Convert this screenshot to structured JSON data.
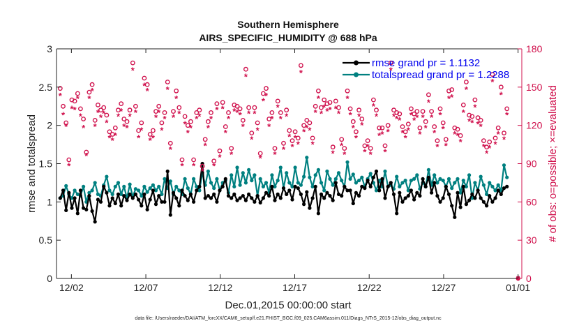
{
  "chart_data": {
    "type": "line",
    "title_line1": "Southern Hemisphere",
    "title_line2": "AIRS_SPECIFIC_HUMIDITY @ 688 hPa",
    "xlabel": "Dec.01,2015 00:00:00 start",
    "ylabel_left": "rmse and totalspread",
    "ylabel_right": "# of obs: o=possible; ×=evaluated",
    "footer": "data file: /Users/raeder/DAI/ATM_forcXX/CAM6_setup/f.e21.FHIST_BGC.f09_025.CAM6assim.011/Diags_NTrS_2015-12/obs_diag_output.nc",
    "xlim": [
      0,
      31.25
    ],
    "ylim_left": [
      0,
      3
    ],
    "ylim_right": [
      0,
      180
    ],
    "xticks": [
      1,
      6,
      11,
      16,
      21,
      26,
      31
    ],
    "xtick_labels": [
      "12/02",
      "12/07",
      "12/12",
      "12/17",
      "12/22",
      "12/27",
      "01/01"
    ],
    "yticks_left": [
      0,
      0.5,
      1,
      1.5,
      2,
      2.5,
      3
    ],
    "ytick_labels_left": [
      "0",
      "0.5",
      "1",
      "1.5",
      "2",
      "2.5",
      "3"
    ],
    "yticks_right": [
      0,
      30,
      60,
      90,
      120,
      150,
      180
    ],
    "ytick_labels_right": [
      "0",
      "30",
      "60",
      "90",
      "120",
      "150",
      "180"
    ],
    "legend": [
      "rmse grand pr = 1.1132",
      "totalspread grand pr = 1.2288"
    ],
    "legend_location": "top-right",
    "colors": {
      "rmse": "#000000",
      "totalspread": "#008080",
      "obs": "#d0104c",
      "axis": "#222222",
      "right_axis": "#d0104c"
    },
    "rmse": [
      1.05,
      1.15,
      0.89,
      1.12,
      0.92,
      1.05,
      0.85,
      1.15,
      0.92,
      0.9,
      1.08,
      0.88,
      0.74,
      1.03,
      1.0,
      1.2,
      1.12,
      0.95,
      1.05,
      0.98,
      1.1,
      0.95,
      1.08,
      1.02,
      1.1,
      1.05,
      1.1,
      1.03,
      0.95,
      1.1,
      0.9,
      1.03,
      1.15,
      0.97,
      1.08,
      1.0,
      1.0,
      1.4,
      0.83,
      1.12,
      1.05,
      0.95,
      1.15,
      1.08,
      1.02,
      1.1,
      1.0,
      1.15,
      1.2,
      1.5,
      1.05,
      1.08,
      1.05,
      1.1,
      1.0,
      1.15,
      1.2,
      1.3,
      1.08,
      1.05,
      1.1,
      1.02,
      1.05,
      1.08,
      1.02,
      1.1,
      1.05,
      1.0,
      1.08,
      0.99,
      1.05,
      1.12,
      1.08,
      1.2,
      1.02,
      1.1,
      1.05,
      1.18,
      1.1,
      1.15,
      1.03,
      1.2,
      1.18,
      1.1,
      0.97,
      1.13,
      0.92,
      1.05,
      1.2,
      0.85,
      1.1,
      1.05,
      1.12,
      1.08,
      1.02,
      1.25,
      1.1,
      1.08,
      1.2,
      1.15,
      1.15,
      0.98,
      1.12,
      1.08,
      1.2,
      1.18,
      1.28,
      1.2,
      1.32,
      1.4,
      1.15,
      1.3,
      1.05,
      1.2,
      1.25,
      1.1,
      0.85,
      1.12,
      1.0,
      1.05,
      1.08,
      1.15,
      1.03,
      1.12,
      1.08,
      1.3,
      1.2,
      1.32,
      1.12,
      1.25,
      1.08,
      1.0,
      1.05,
      1.2,
      1.1,
      0.95,
      0.8,
      1.12,
      0.93,
      1.2,
      0.97,
      1.02,
      1.1,
      1.05,
      1.15,
      1.05,
      1.0,
      0.95,
      1.08,
      1.0,
      1.05,
      1.15,
      1.1,
      1.18,
      1.2
    ],
    "totalspread": [
      1.05,
      1.08,
      1.21,
      1.1,
      1.05,
      1.15,
      1.1,
      1.08,
      1.2,
      1.0,
      1.12,
      1.15,
      1.25,
      1.1,
      1.08,
      1.22,
      1.33,
      1.15,
      1.1,
      1.2,
      1.25,
      1.1,
      1.2,
      1.05,
      1.23,
      1.07,
      1.17,
      1.15,
      1.08,
      1.2,
      1.13,
      1.18,
      1.22,
      1.15,
      1.2,
      1.1,
      1.3,
      1.18,
      1.27,
      1.1,
      1.2,
      1.15,
      1.1,
      1.3,
      1.18,
      1.1,
      1.3,
      1.2,
      1.15,
      1.38,
      1.22,
      1.4,
      1.25,
      1.18,
      1.3,
      1.15,
      1.25,
      1.28,
      1.12,
      1.35,
      1.2,
      1.45,
      1.22,
      1.38,
      1.25,
      1.42,
      1.28,
      1.35,
      1.08,
      1.3,
      1.2,
      1.25,
      1.12,
      1.35,
      1.2,
      1.28,
      1.45,
      1.18,
      1.38,
      1.25,
      1.2,
      1.45,
      1.25,
      1.22,
      1.33,
      1.58,
      1.32,
      1.2,
      1.35,
      1.42,
      1.25,
      1.15,
      1.4,
      1.3,
      1.22,
      1.3,
      1.38,
      1.28,
      1.2,
      1.52,
      1.3,
      1.36,
      1.25,
      1.28,
      1.32,
      1.2,
      1.3,
      1.37,
      1.25,
      1.15,
      1.28,
      1.2,
      1.4,
      1.2,
      1.22,
      1.17,
      1.33,
      1.2,
      1.25,
      1.28,
      1.15,
      1.28,
      1.3,
      1.35,
      1.17,
      1.25,
      1.2,
      1.42,
      1.22,
      1.35,
      1.25,
      1.3,
      1.28,
      1.2,
      1.3,
      1.18,
      1.25,
      1.3,
      1.12,
      1.28,
      1.2,
      1.35,
      1.05,
      1.25,
      1.15,
      1.33,
      1.22,
      1.1,
      1.25,
      1.2,
      1.15,
      1.22,
      1.15,
      1.48,
      1.32
    ],
    "obs_possible": [
      149,
      135,
      122,
      93,
      140,
      139,
      145,
      133,
      125,
      99,
      146,
      152,
      124,
      136,
      132,
      134,
      128,
      115,
      113,
      118,
      132,
      137,
      125,
      123,
      132,
      169,
      135,
      116,
      122,
      157,
      152,
      113,
      116,
      131,
      135,
      122,
      130,
      154,
      106,
      131,
      147,
      134,
      93,
      127,
      120,
      123,
      93,
      130,
      132,
      88,
      109,
      123,
      130,
      92,
      137,
      100,
      138,
      119,
      130,
      102,
      136,
      135,
      133,
      124,
      164,
      134,
      114,
      134,
      122,
      98,
      145,
      149,
      125,
      130,
      102,
      139,
      130,
      106,
      132,
      116,
      108,
      115,
      110,
      167,
      120,
      124,
      122,
      110,
      135,
      147,
      134,
      140,
      137,
      138,
      103,
      139,
      134,
      109,
      102,
      147,
      133,
      123,
      115,
      132,
      125,
      104,
      108,
      102,
      140,
      132,
      118,
      118,
      104,
      120,
      169,
      132,
      130,
      129,
      119,
      115,
      121,
      133,
      129,
      131,
      118,
      131,
      123,
      144,
      131,
      119,
      108,
      133,
      122,
      109,
      147,
      148,
      118,
      117,
      112,
      136,
      154,
      128,
      127,
      140,
      126,
      124,
      108,
      103,
      107,
      160,
      110,
      118,
      150,
      114,
      133
    ],
    "obs_evaluated": [
      143,
      128,
      119,
      88,
      133,
      132,
      141,
      127,
      118,
      96,
      141,
      147,
      119,
      130,
      126,
      129,
      122,
      110,
      108,
      112,
      127,
      131,
      119,
      118,
      127,
      163,
      130,
      110,
      116,
      151,
      147,
      108,
      110,
      126,
      130,
      116,
      125,
      148,
      101,
      126,
      141,
      129,
      88,
      121,
      114,
      118,
      88,
      125,
      127,
      84,
      104,
      118,
      125,
      88,
      132,
      95,
      133,
      114,
      125,
      97,
      131,
      130,
      128,
      119,
      158,
      129,
      109,
      129,
      116,
      94,
      139,
      143,
      119,
      125,
      97,
      134,
      125,
      101,
      127,
      111,
      103,
      110,
      105,
      161,
      115,
      118,
      116,
      105,
      130,
      141,
      129,
      134,
      131,
      132,
      98,
      133,
      129,
      104,
      97,
      141,
      128,
      118,
      110,
      127,
      120,
      99,
      103,
      97,
      135,
      127,
      112,
      113,
      99,
      115,
      163,
      127,
      125,
      124,
      114,
      110,
      116,
      128,
      124,
      126,
      113,
      126,
      118,
      138,
      126,
      114,
      103,
      128,
      117,
      104,
      141,
      142,
      113,
      112,
      107,
      130,
      148,
      123,
      122,
      134,
      121,
      119,
      103,
      98,
      102,
      154,
      105,
      113,
      144,
      109,
      128
    ],
    "obs_final_possible": 0,
    "obs_final_evaluated": 0
  }
}
